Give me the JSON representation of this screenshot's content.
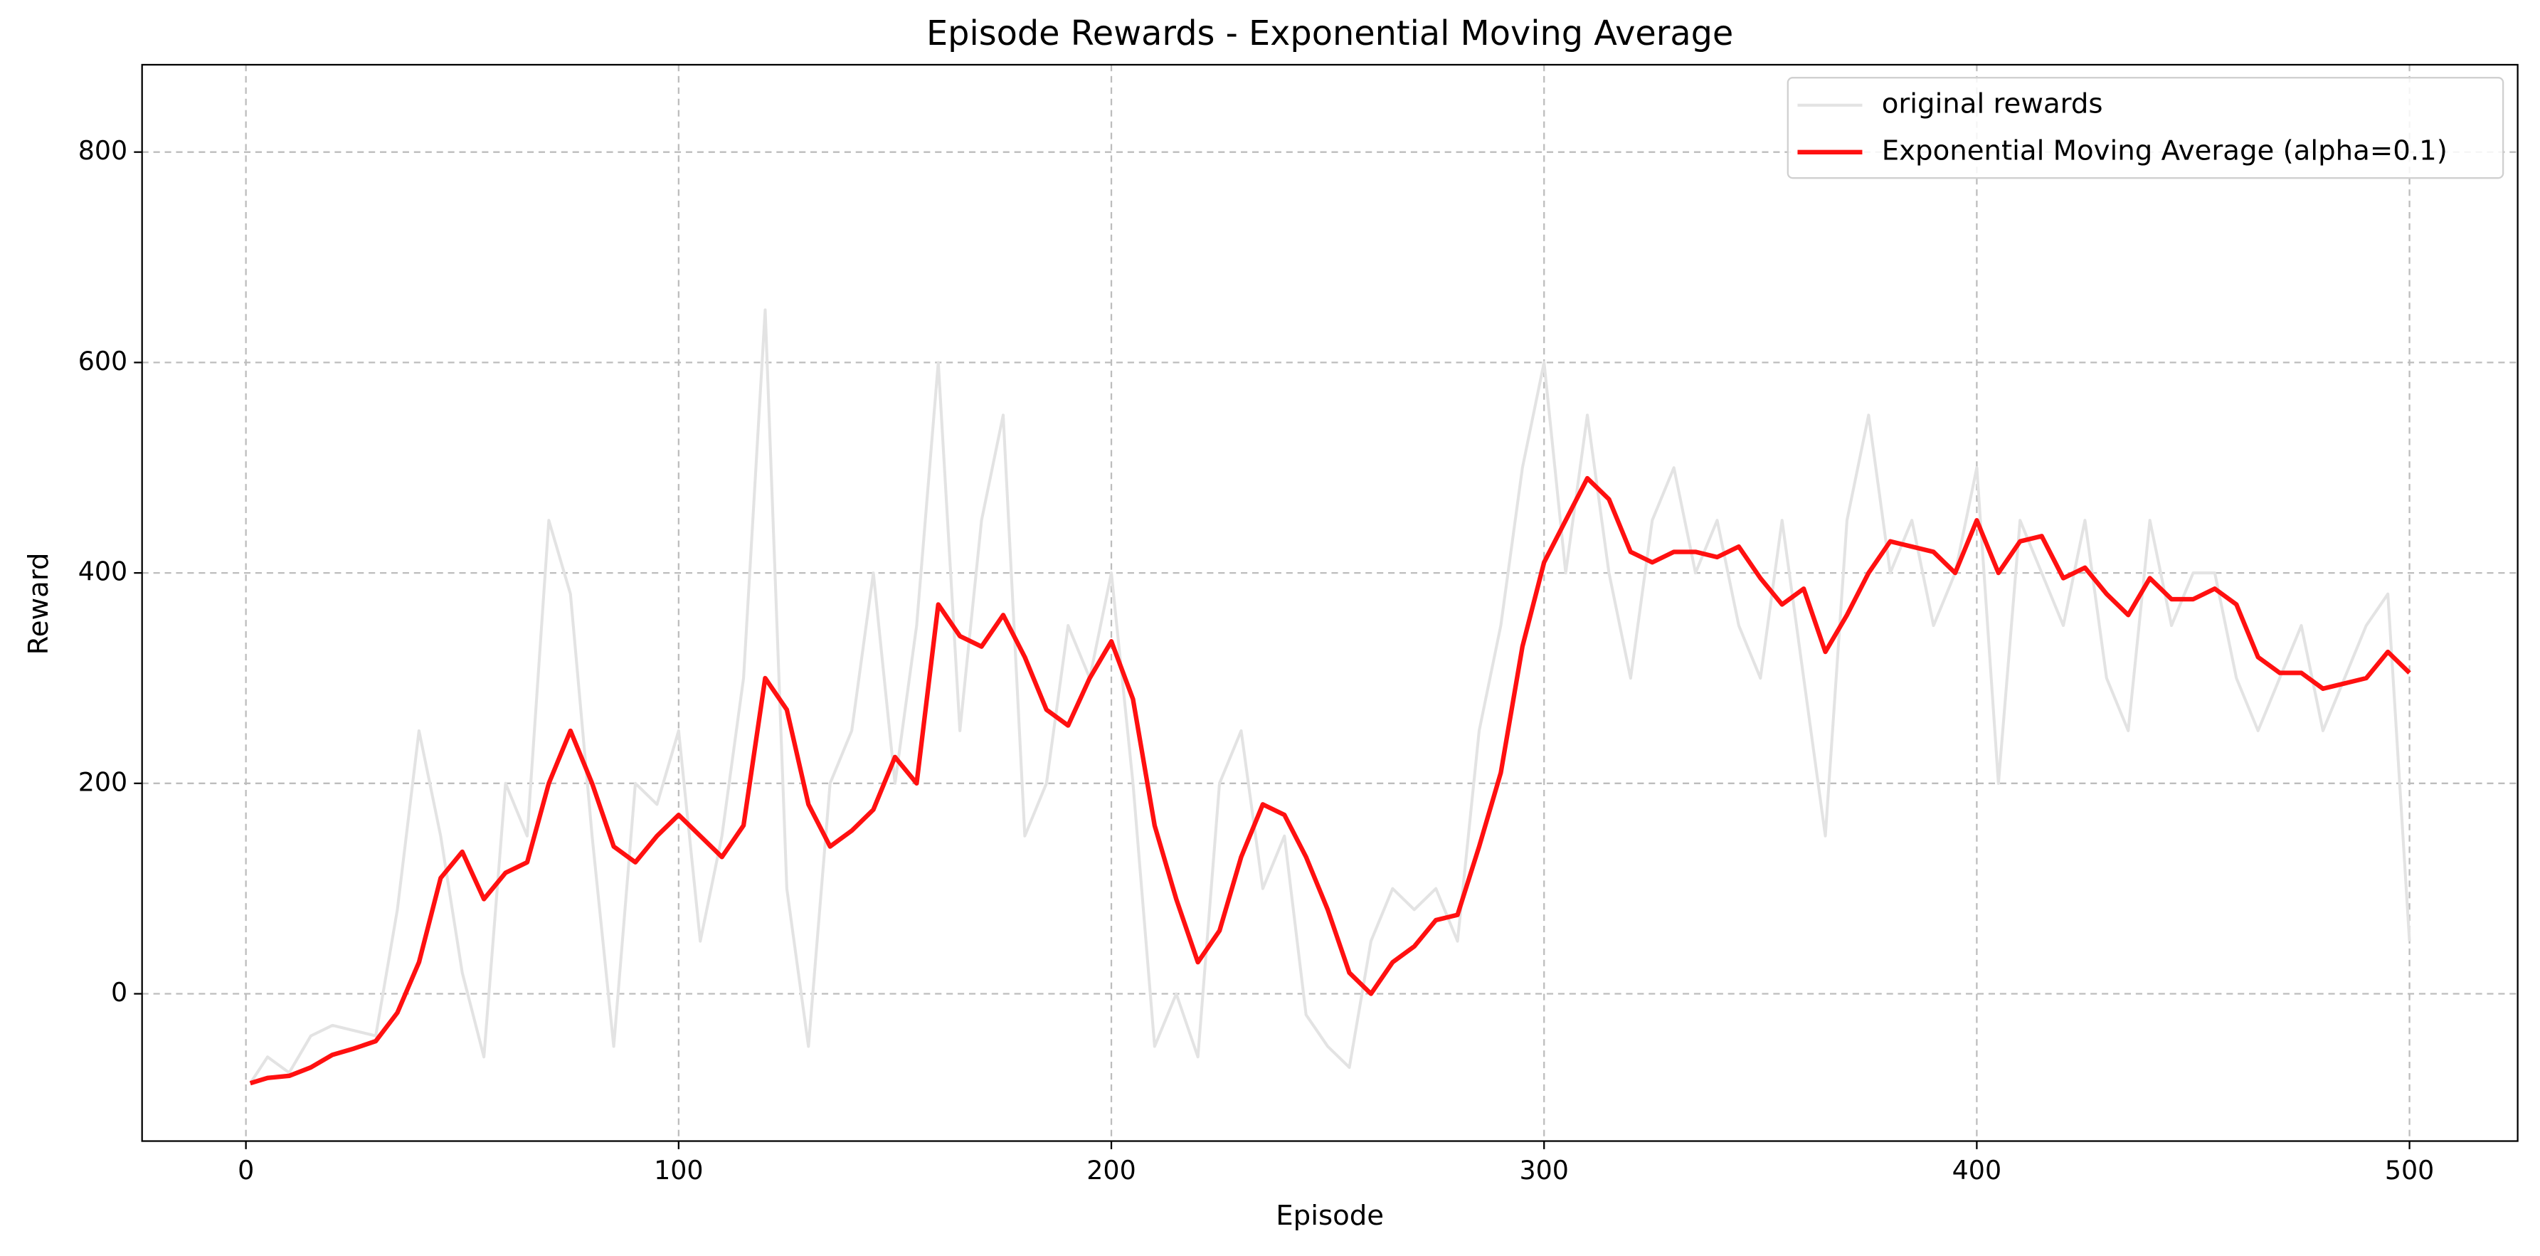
{
  "chart_data": {
    "type": "line",
    "title": "Episode Rewards - Exponential Moving Average",
    "xlabel": "Episode",
    "ylabel": "Reward",
    "x": [
      1,
      5,
      10,
      15,
      20,
      25,
      30,
      35,
      40,
      45,
      50,
      55,
      60,
      65,
      70,
      75,
      80,
      85,
      90,
      95,
      100,
      105,
      110,
      115,
      120,
      125,
      130,
      135,
      140,
      145,
      150,
      155,
      160,
      165,
      170,
      175,
      180,
      185,
      190,
      195,
      200,
      205,
      210,
      215,
      220,
      225,
      230,
      235,
      240,
      245,
      250,
      255,
      260,
      265,
      270,
      275,
      280,
      285,
      290,
      295,
      300,
      305,
      310,
      315,
      320,
      325,
      330,
      335,
      340,
      345,
      350,
      355,
      360,
      365,
      370,
      375,
      380,
      385,
      390,
      395,
      400,
      405,
      410,
      415,
      420,
      425,
      430,
      435,
      440,
      445,
      450,
      455,
      460,
      465,
      470,
      475,
      480,
      485,
      490,
      495,
      500
    ],
    "series": [
      {
        "name": "original rewards",
        "color": "#e3e3e3",
        "values": [
          -85,
          -60,
          -75,
          -40,
          -30,
          -35,
          -40,
          80,
          250,
          150,
          20,
          -60,
          200,
          150,
          450,
          380,
          150,
          -50,
          200,
          180,
          250,
          50,
          150,
          300,
          650,
          100,
          -50,
          200,
          250,
          400,
          200,
          350,
          600,
          250,
          450,
          550,
          150,
          200,
          350,
          300,
          400,
          200,
          -50,
          0,
          -60,
          200,
          250,
          100,
          150,
          -20,
          -50,
          -70,
          50,
          100,
          80,
          100,
          50,
          250,
          350,
          500,
          600,
          400,
          550,
          400,
          300,
          450,
          500,
          400,
          450,
          350,
          300,
          450,
          300,
          150,
          450,
          550,
          400,
          450,
          350,
          400,
          500,
          200,
          450,
          400,
          350,
          450,
          300,
          250,
          450,
          350,
          400,
          400,
          300,
          250,
          300,
          350,
          250,
          300,
          350,
          380,
          50
        ]
      },
      {
        "name": "Exponential Moving Average (alpha=0.1)",
        "color": "#ff1010",
        "values": [
          -85,
          -80,
          -78,
          -70,
          -58,
          -52,
          -45,
          -18,
          30,
          110,
          135,
          90,
          115,
          125,
          200,
          250,
          200,
          140,
          125,
          150,
          170,
          150,
          130,
          160,
          300,
          270,
          180,
          140,
          155,
          175,
          225,
          200,
          370,
          340,
          330,
          360,
          320,
          270,
          255,
          300,
          335,
          280,
          160,
          90,
          30,
          60,
          130,
          180,
          170,
          130,
          80,
          20,
          0,
          30,
          45,
          70,
          75,
          140,
          210,
          330,
          410,
          450,
          490,
          470,
          420,
          410,
          420,
          420,
          415,
          425,
          395,
          370,
          385,
          325,
          360,
          400,
          430,
          425,
          420,
          400,
          450,
          400,
          430,
          435,
          395,
          405,
          380,
          360,
          395,
          375,
          375,
          385,
          370,
          320,
          305,
          305,
          290,
          295,
          300,
          325,
          305
        ]
      }
    ],
    "xlim": [
      -24,
      525
    ],
    "ylim": [
      -140,
      883
    ],
    "xticks": [
      0,
      100,
      200,
      300,
      400,
      500
    ],
    "yticks": [
      0,
      200,
      400,
      600,
      800
    ],
    "grid": true,
    "legend": "upper right"
  }
}
